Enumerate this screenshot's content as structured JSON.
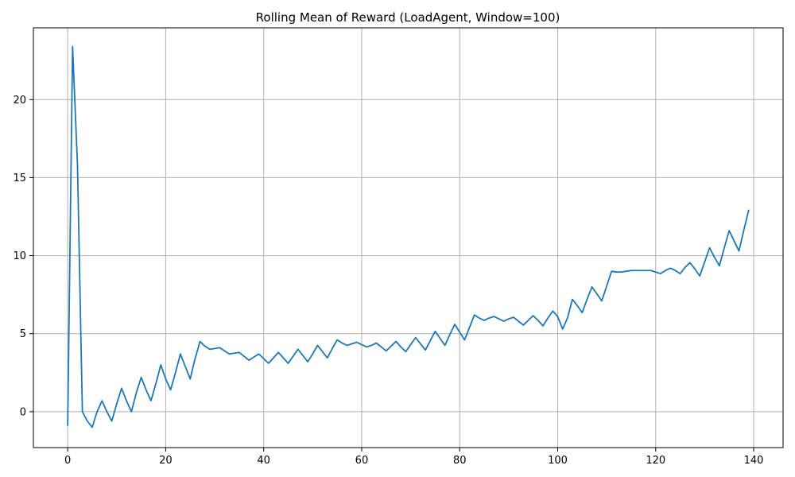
{
  "chart_data": {
    "type": "line",
    "title": "Rolling Mean of Reward (LoadAgent, Window=100)",
    "xlabel": "",
    "ylabel": "",
    "xlim": [
      -7,
      146
    ],
    "ylim": [
      -2.3,
      24.6
    ],
    "xticks": [
      0,
      20,
      40,
      60,
      80,
      100,
      120,
      140
    ],
    "yticks": [
      0,
      5,
      10,
      15,
      20
    ],
    "grid": true,
    "line_color": "#1f77b4",
    "series": [
      {
        "x": [
          0,
          1,
          2,
          3,
          4,
          5,
          6,
          7,
          8,
          9,
          10,
          11,
          12,
          13,
          14,
          15,
          16,
          17,
          18,
          19,
          20,
          21,
          22,
          23,
          24,
          25,
          26,
          27,
          28,
          29,
          30,
          31,
          32,
          33,
          34,
          35,
          36,
          37,
          38,
          39,
          40,
          41,
          42,
          43,
          44,
          45,
          46,
          47,
          48,
          49,
          50,
          51,
          52,
          53,
          54,
          55,
          56,
          57,
          58,
          59,
          60,
          61,
          62,
          63,
          64,
          65,
          66,
          67,
          68,
          69,
          70,
          71,
          72,
          73,
          74,
          75,
          76,
          77,
          78,
          79,
          80,
          81,
          82,
          83,
          84,
          85,
          86,
          87,
          88,
          89,
          90,
          91,
          92,
          93,
          94,
          95,
          96,
          97,
          98,
          99,
          100,
          101,
          102,
          103,
          104,
          105,
          106,
          107,
          108,
          109,
          110,
          111,
          112,
          113,
          114,
          115,
          116,
          117,
          118,
          119,
          120,
          121,
          122,
          123,
          124,
          125,
          126,
          127,
          128,
          129,
          130,
          131,
          132,
          133,
          134,
          135,
          136,
          137,
          138,
          139
        ],
        "y": [
          -0.9,
          23.4,
          15.8,
          0.0,
          -0.6,
          -1.0,
          0.0,
          0.7,
          0.0,
          -0.6,
          0.5,
          1.5,
          0.7,
          0.0,
          1.2,
          2.2,
          1.4,
          0.7,
          1.8,
          3.0,
          2.1,
          1.4,
          2.5,
          3.7,
          2.9,
          2.1,
          3.4,
          4.5,
          4.2,
          4.0,
          4.05,
          4.1,
          3.9,
          3.7,
          3.75,
          3.8,
          3.55,
          3.3,
          3.5,
          3.7,
          3.4,
          3.1,
          3.45,
          3.8,
          3.45,
          3.1,
          3.55,
          4.0,
          3.6,
          3.2,
          3.7,
          4.25,
          3.85,
          3.45,
          4.05,
          4.6,
          4.4,
          4.25,
          4.35,
          4.45,
          4.3,
          4.15,
          4.25,
          4.4,
          4.15,
          3.9,
          4.2,
          4.5,
          4.15,
          3.85,
          4.3,
          4.75,
          4.35,
          3.95,
          4.55,
          5.15,
          4.7,
          4.25,
          4.95,
          5.6,
          5.1,
          4.6,
          5.4,
          6.2,
          6.0,
          5.85,
          6.0,
          6.1,
          5.95,
          5.8,
          5.95,
          6.05,
          5.8,
          5.55,
          5.85,
          6.15,
          5.85,
          5.5,
          6.0,
          6.45,
          6.1,
          5.3,
          6.0,
          7.2,
          6.8,
          6.35,
          7.2,
          8.0,
          7.55,
          7.1,
          8.05,
          9.0,
          8.95,
          8.95,
          9.0,
          9.05,
          9.05,
          9.05,
          9.05,
          9.05,
          8.95,
          8.85,
          9.05,
          9.2,
          9.05,
          8.85,
          9.25,
          9.55,
          9.15,
          8.7,
          9.6,
          10.5,
          9.9,
          9.35,
          10.5,
          11.6,
          10.95,
          10.3,
          11.65,
          12.95
        ]
      }
    ]
  }
}
